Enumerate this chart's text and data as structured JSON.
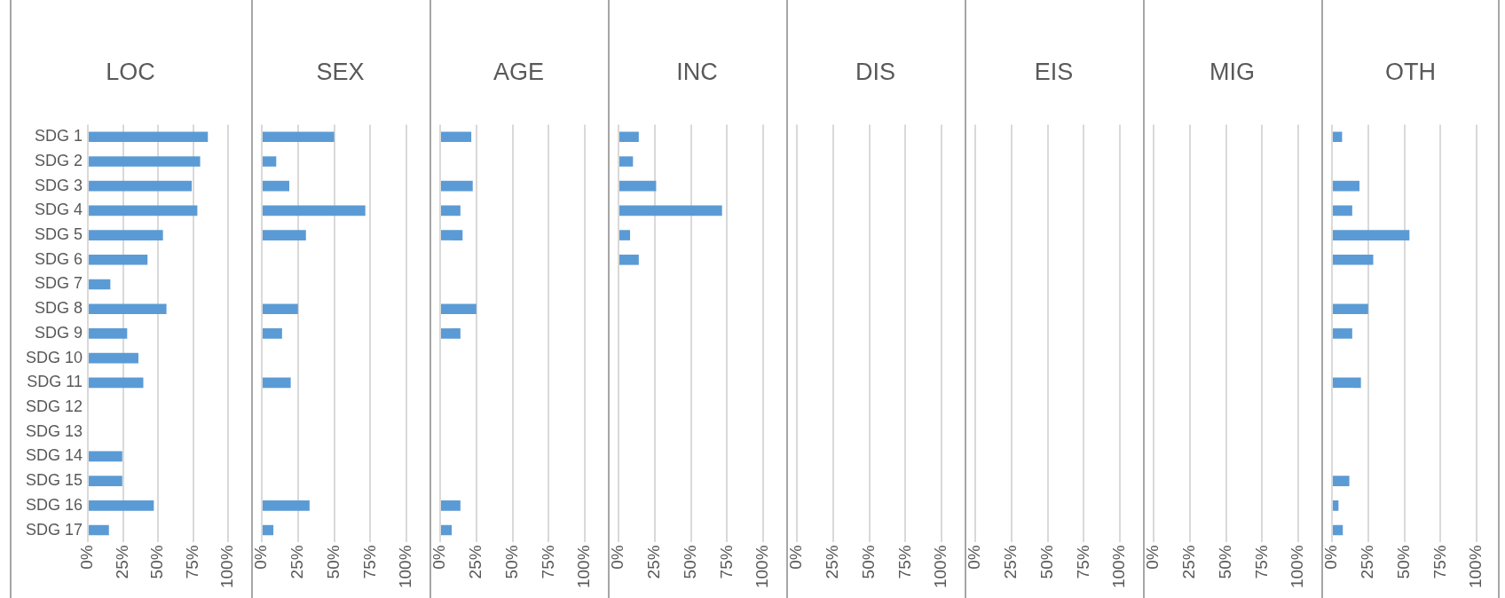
{
  "chart_data": [
    {
      "type": "bar",
      "orientation": "horizontal",
      "title": "LOC",
      "categories": [
        "SDG 1",
        "SDG 2",
        "SDG 3",
        "SDG 4",
        "SDG 5",
        "SDG 6",
        "SDG 7",
        "SDG 8",
        "SDG 9",
        "SDG 10",
        "SDG 11",
        "SDG 12",
        "SDG 13",
        "SDG 14",
        "SDG 15",
        "SDG 16",
        "SDG 17"
      ],
      "color": "#5b9bd5",
      "values": [
        85.5,
        80,
        74,
        78,
        53.5,
        42.5,
        16,
        56,
        28,
        36,
        39.5,
        null,
        null,
        24.5,
        24.5,
        47,
        15
      ],
      "xlim": [
        0,
        100
      ],
      "xticks": [
        {
          "value": 0,
          "label": "0%"
        },
        {
          "value": 25,
          "label": "25%"
        },
        {
          "value": 50,
          "label": "50%"
        },
        {
          "value": 75,
          "label": "75%"
        },
        {
          "value": 100,
          "label": "100%"
        }
      ],
      "grid": "x",
      "legend": false
    },
    {
      "type": "bar",
      "orientation": "horizontal",
      "title": "SEX",
      "categories": [
        null,
        null,
        null,
        null,
        null,
        null,
        null,
        null,
        null,
        null,
        null,
        null,
        null,
        null,
        null,
        null,
        null
      ],
      "color": "#5b9bd5",
      "values": [
        50,
        10,
        19,
        71.5,
        30.5,
        null,
        null,
        25,
        14,
        null,
        20,
        null,
        null,
        null,
        null,
        33,
        8
      ],
      "xlim": [
        0,
        100
      ],
      "xticks": [
        {
          "value": 0,
          "label": "0%"
        },
        {
          "value": 25,
          "label": "25%"
        },
        {
          "value": 50,
          "label": "50%"
        },
        {
          "value": 75,
          "label": "75%"
        },
        {
          "value": 100,
          "label": "100%"
        }
      ],
      "grid": "x",
      "legend": false,
      "tick_labels": "x"
    },
    {
      "type": "bar",
      "orientation": "horizontal",
      "title": "AGE",
      "categories": [
        null,
        null,
        null,
        null,
        null,
        null,
        null,
        null,
        null,
        null,
        null,
        null,
        null,
        null,
        null,
        null,
        null
      ],
      "color": "#5b9bd5",
      "values": [
        21.5,
        null,
        22.5,
        14,
        15.5,
        null,
        null,
        25,
        14,
        null,
        null,
        null,
        null,
        null,
        null,
        14,
        8
      ],
      "xlim": [
        0,
        100
      ],
      "xticks": [
        {
          "value": 0,
          "label": "0%"
        },
        {
          "value": 25,
          "label": "25%"
        },
        {
          "value": 50,
          "label": "50%"
        },
        {
          "value": 75,
          "label": "75%"
        },
        {
          "value": 100,
          "label": "100%"
        }
      ],
      "grid": "x",
      "legend": false,
      "tick_labels": "x"
    },
    {
      "type": "bar",
      "orientation": "horizontal",
      "title": "INC",
      "categories": [
        null,
        null,
        null,
        null,
        null,
        null,
        null,
        null,
        null,
        null,
        null,
        null,
        null,
        null,
        null,
        null,
        null
      ],
      "color": "#5b9bd5",
      "values": [
        14,
        10,
        26,
        71.5,
        8,
        14,
        null,
        null,
        null,
        null,
        null,
        null,
        null,
        null,
        null,
        null,
        null
      ],
      "xlim": [
        0,
        100
      ],
      "xticks": [
        {
          "value": 0,
          "label": "0%"
        },
        {
          "value": 25,
          "label": "25%"
        },
        {
          "value": 50,
          "label": "50%"
        },
        {
          "value": 75,
          "label": "75%"
        },
        {
          "value": 100,
          "label": "100%"
        }
      ],
      "grid": "x",
      "legend": false,
      "tick_labels": "x"
    },
    {
      "type": "bar",
      "orientation": "horizontal",
      "title": "DIS",
      "categories": [
        null,
        null,
        null,
        null,
        null,
        null,
        null,
        null,
        null,
        null,
        null,
        null,
        null,
        null,
        null,
        null,
        null
      ],
      "color": "#5b9bd5",
      "values": [
        null,
        null,
        null,
        null,
        null,
        null,
        null,
        null,
        null,
        null,
        null,
        null,
        null,
        null,
        null,
        null,
        null
      ],
      "xlim": [
        0,
        100
      ],
      "xticks": [
        {
          "value": 0,
          "label": "0%"
        },
        {
          "value": 25,
          "label": "25%"
        },
        {
          "value": 50,
          "label": "50%"
        },
        {
          "value": 75,
          "label": "75%"
        },
        {
          "value": 100,
          "label": "100%"
        }
      ],
      "grid": "x",
      "legend": false,
      "tick_labels": "x"
    },
    {
      "type": "bar",
      "orientation": "horizontal",
      "title": "EIS",
      "categories": [
        null,
        null,
        null,
        null,
        null,
        null,
        null,
        null,
        null,
        null,
        null,
        null,
        null,
        null,
        null,
        null,
        null
      ],
      "color": "#5b9bd5",
      "values": [
        null,
        null,
        null,
        null,
        null,
        null,
        null,
        null,
        null,
        null,
        null,
        null,
        null,
        null,
        null,
        null,
        null
      ],
      "xlim": [
        0,
        100
      ],
      "xticks": [
        {
          "value": 0,
          "label": "0%"
        },
        {
          "value": 25,
          "label": "25%"
        },
        {
          "value": 50,
          "label": "50%"
        },
        {
          "value": 75,
          "label": "75%"
        },
        {
          "value": 100,
          "label": "100%"
        }
      ],
      "grid": "x",
      "legend": false,
      "tick_labels": "x"
    },
    {
      "type": "bar",
      "orientation": "horizontal",
      "title": "MIG",
      "categories": [
        null,
        null,
        null,
        null,
        null,
        null,
        null,
        null,
        null,
        null,
        null,
        null,
        null,
        null,
        null,
        null,
        null
      ],
      "color": "#5b9bd5",
      "values": [
        null,
        null,
        null,
        null,
        null,
        null,
        null,
        null,
        null,
        null,
        null,
        null,
        null,
        null,
        null,
        null,
        null
      ],
      "xlim": [
        0,
        100
      ],
      "xticks": [
        {
          "value": 0,
          "label": "0%"
        },
        {
          "value": 25,
          "label": "25%"
        },
        {
          "value": 50,
          "label": "50%"
        },
        {
          "value": 75,
          "label": "75%"
        },
        {
          "value": 100,
          "label": "100%"
        }
      ],
      "grid": "x",
      "legend": false,
      "tick_labels": "x"
    },
    {
      "type": "bar",
      "orientation": "horizontal",
      "title": "OTH",
      "categories": [
        null,
        null,
        null,
        null,
        null,
        null,
        null,
        null,
        null,
        null,
        null,
        null,
        null,
        null,
        null,
        null,
        null
      ],
      "color": "#5b9bd5",
      "values": [
        7,
        null,
        19,
        14,
        53.5,
        28.5,
        null,
        25,
        14,
        null,
        20,
        null,
        null,
        null,
        12,
        4.5,
        7.5
      ],
      "xlim": [
        0,
        100
      ],
      "xticks": [
        {
          "value": 0,
          "label": "0%"
        },
        {
          "value": 25,
          "label": "25%"
        },
        {
          "value": 50,
          "label": "50%"
        },
        {
          "value": 75,
          "label": "75%"
        },
        {
          "value": 100,
          "label": "100%"
        }
      ],
      "grid": "x",
      "legend": false,
      "tick_labels": "x"
    }
  ]
}
